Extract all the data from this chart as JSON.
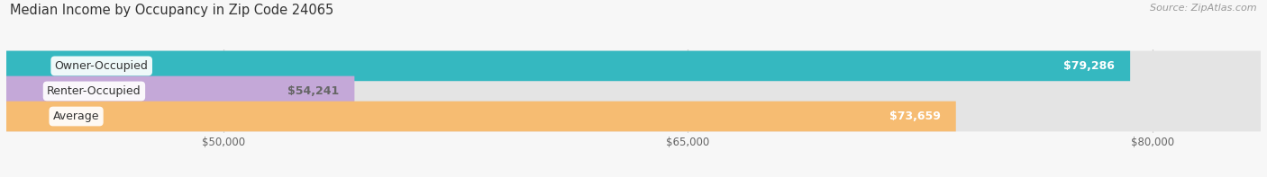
{
  "title": "Median Income by Occupancy in Zip Code 24065",
  "source": "Source: ZipAtlas.com",
  "categories": [
    "Owner-Occupied",
    "Renter-Occupied",
    "Average"
  ],
  "values": [
    79286,
    54241,
    73659
  ],
  "bar_colors": [
    "#35b8c0",
    "#c4a8d8",
    "#f6bc72"
  ],
  "value_label_colors": [
    "#ffffff",
    "#666666",
    "#ffffff"
  ],
  "value_labels": [
    "$79,286",
    "$54,241",
    "$73,659"
  ],
  "xmin": 43000,
  "xmax": 83500,
  "xticks": [
    50000,
    65000,
    80000
  ],
  "xticklabels": [
    "$50,000",
    "$65,000",
    "$80,000"
  ],
  "bg_color": "#f7f7f7",
  "bar_bg_color": "#e4e4e4",
  "grid_color": "#d0d0d0",
  "title_fontsize": 10.5,
  "source_fontsize": 8,
  "label_fontsize": 9,
  "value_fontsize": 9,
  "bar_height": 0.6,
  "bar_spacing": 1.0
}
